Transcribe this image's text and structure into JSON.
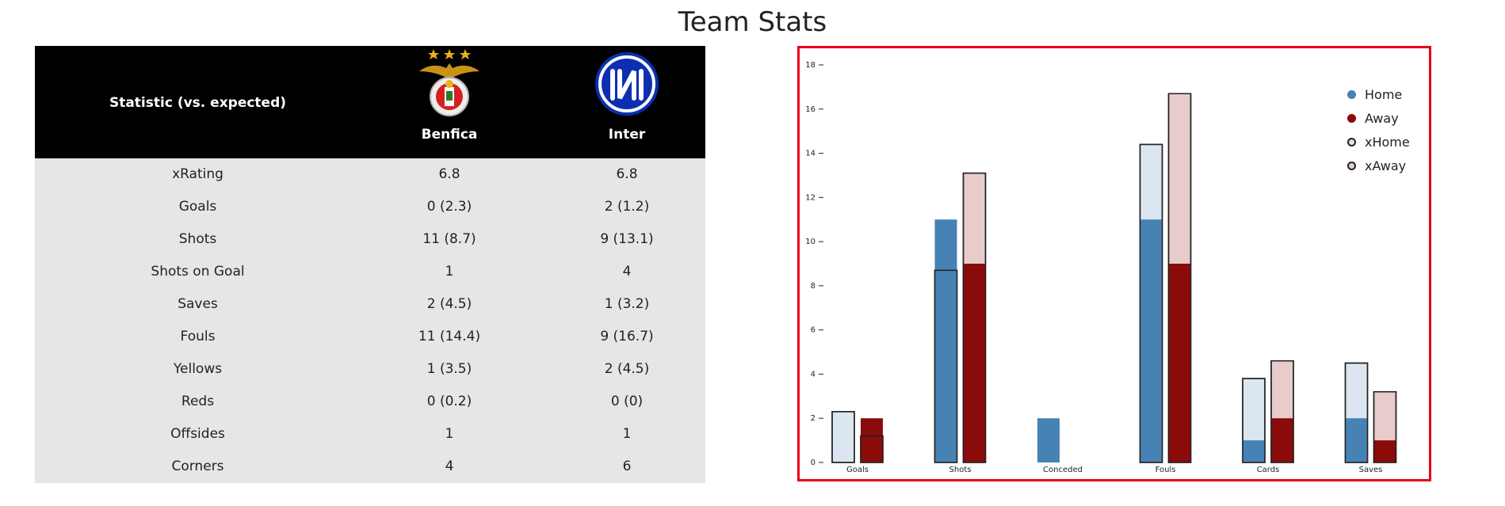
{
  "page": {
    "title": "Team Stats"
  },
  "table": {
    "header_stat": "Statistic (vs. expected)",
    "teams": [
      {
        "name": "Benfica",
        "logo_icon": "benfica-crest-icon"
      },
      {
        "name": "Inter",
        "logo_icon": "inter-crest-icon"
      }
    ],
    "rows": [
      {
        "stat": "xRating",
        "home": "6.8",
        "away": "6.8"
      },
      {
        "stat": "Goals",
        "home": "0 (2.3)",
        "away": "2 (1.2)"
      },
      {
        "stat": "Shots",
        "home": "11 (8.7)",
        "away": "9 (13.1)"
      },
      {
        "stat": "Shots on Goal",
        "home": "1",
        "away": "4"
      },
      {
        "stat": "Saves",
        "home": "2 (4.5)",
        "away": "1 (3.2)"
      },
      {
        "stat": "Fouls",
        "home": "11 (14.4)",
        "away": "9 (16.7)"
      },
      {
        "stat": "Yellows",
        "home": "1 (3.5)",
        "away": "2 (4.5)"
      },
      {
        "stat": "Reds",
        "home": "0 (0.2)",
        "away": "0 (0)"
      },
      {
        "stat": "Offsides",
        "home": "1",
        "away": "1"
      },
      {
        "stat": "Corners",
        "home": "4",
        "away": "6"
      }
    ]
  },
  "colors": {
    "header_bg": "#000000",
    "body_bg": "#e6e6e6",
    "home": "#4682b4",
    "away": "#8b0a0a",
    "xhome": "#dce6f0",
    "xaway": "#e8cccc",
    "frame": "#e8001c"
  },
  "chart_data": {
    "type": "bar",
    "categories": [
      "Goals",
      "Shots",
      "Conceded",
      "Fouls",
      "Cards",
      "Saves"
    ],
    "series": [
      {
        "name": "Home",
        "values": [
          0,
          11,
          2,
          11,
          1,
          2
        ]
      },
      {
        "name": "Away",
        "values": [
          2,
          9,
          0,
          9,
          2,
          1
        ]
      },
      {
        "name": "xHome",
        "values": [
          2.3,
          8.7,
          null,
          14.4,
          3.8,
          4.5
        ]
      },
      {
        "name": "xAway",
        "values": [
          1.2,
          13.1,
          null,
          16.7,
          4.6,
          3.2
        ]
      }
    ],
    "yticks": [
      0,
      2,
      4,
      6,
      8,
      10,
      12,
      14,
      16,
      18
    ],
    "ylim": [
      0,
      18
    ],
    "legend": "top-right",
    "grid": false
  }
}
